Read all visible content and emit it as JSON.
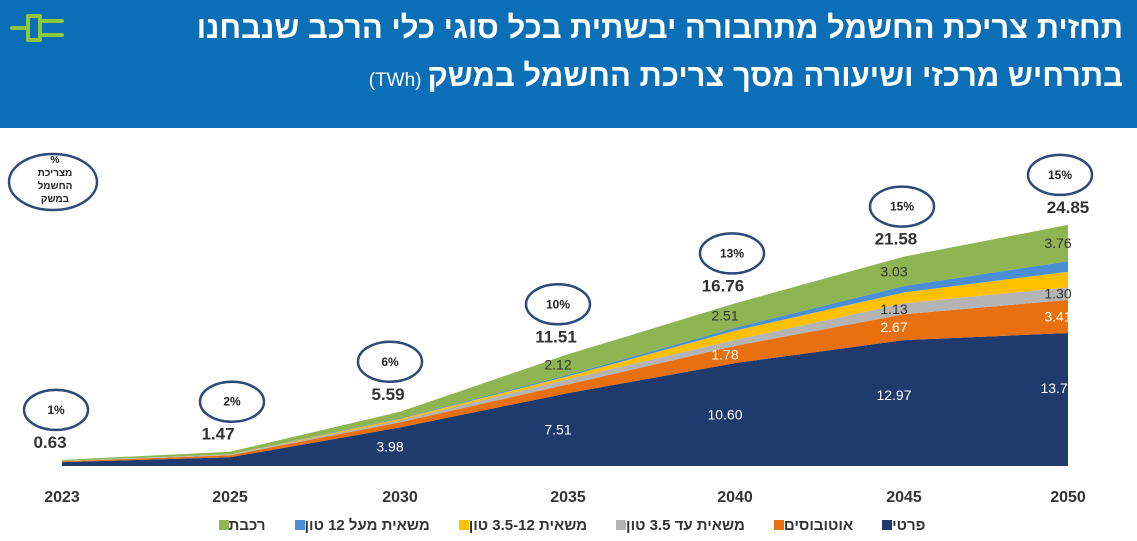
{
  "header": {
    "title_line1": "תחזית צריכת החשמל מתחבורה יבשתית בכל סוגי כלי הרכב שנבחנו",
    "title_line2": "בתרחיש מרכזי ושיעורה מסך צריכת החשמל במשק",
    "unit": "(TWh)",
    "icon": "plug-icon",
    "banner_color": "#0a6fb7",
    "icon_color": "#8dc63f"
  },
  "chart_data": {
    "type": "area",
    "stacked": true,
    "x": [
      "2023",
      "2025",
      "2030",
      "2035",
      "2040",
      "2045",
      "2050"
    ],
    "series": [
      {
        "name": "פרטי",
        "color": "#1f3b6e",
        "values": [
          0.4,
          0.9,
          3.98,
          7.51,
          10.6,
          12.97,
          13.71
        ]
      },
      {
        "name": "אוטובוסים",
        "color": "#e8700e",
        "values": [
          0.08,
          0.2,
          0.52,
          0.9,
          1.78,
          2.67,
          3.41
        ]
      },
      {
        "name": "משאית עד 3.5 טון",
        "color": "#b4b4b4",
        "values": [
          0.03,
          0.06,
          0.22,
          0.55,
          0.62,
          1.13,
          1.3
        ]
      },
      {
        "name": "משאית 3.5-12 טון",
        "color": "#ffc000",
        "values": [
          0.01,
          0.03,
          0.15,
          0.28,
          0.95,
          1.12,
          1.6
        ]
      },
      {
        "name": "משאית מעל 12 טון",
        "color": "#4a8fd6",
        "values": [
          0.01,
          0.03,
          0.08,
          0.15,
          0.3,
          0.66,
          1.07
        ]
      },
      {
        "name": "רכבת",
        "color": "#8fb552",
        "values": [
          0.1,
          0.25,
          0.64,
          2.12,
          2.51,
          3.03,
          3.76
        ]
      }
    ],
    "labeled_series": [
      0,
      1,
      2,
      5
    ],
    "value_labels": {
      "0": [
        "",
        "",
        "3.98",
        "7.51",
        "10.60",
        "12.97",
        "13.71"
      ],
      "1": [
        "",
        "",
        "",
        "",
        "1.78",
        "2.67",
        "3.41"
      ],
      "2": [
        "",
        "",
        "",
        "",
        "",
        "1.13",
        "1.30"
      ],
      "5": [
        "",
        "",
        "",
        "2.12",
        "2.51",
        "3.03",
        "3.76"
      ]
    },
    "totals": [
      "0.63",
      "1.47",
      "5.59",
      "11.51",
      "16.76",
      "21.58",
      "24.85"
    ],
    "share_of_national": [
      "1%",
      "2%",
      "6%",
      "10%",
      "13%",
      "15%",
      "15%"
    ],
    "share_axis_label": "% מצריכת החשמל במשק",
    "share_axis_lines": [
      "%",
      "מצריכת",
      "החשמל",
      "במשק"
    ],
    "ylim": [
      0,
      27
    ],
    "legend_position": "bottom",
    "grid": false
  }
}
